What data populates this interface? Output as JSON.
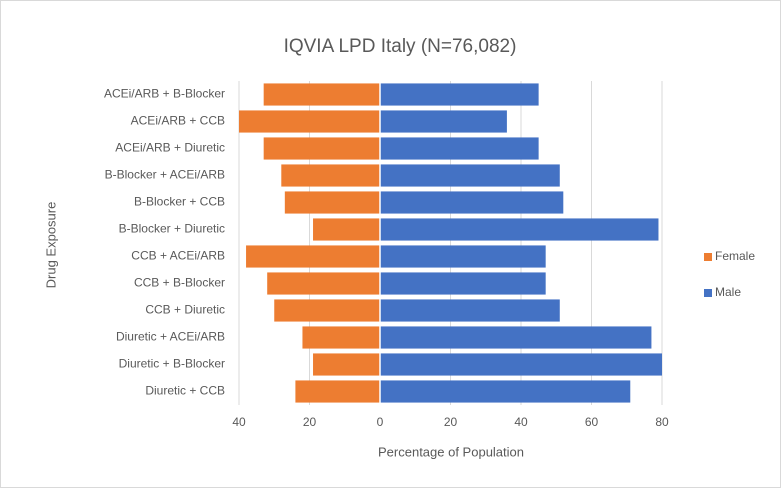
{
  "chart_data": {
    "type": "pyramid",
    "title": "IQVIA LPD Italy (N=76,082)",
    "x_label": "Percentage of Population",
    "y_label": "Drug Exposure",
    "categories": [
      "ACEi/ARB + B-Blocker",
      "ACEi/ARB + CCB",
      "ACEi/ARB + Diuretic",
      "B-Blocker + ACEi/ARB",
      "B-Blocker + CCB",
      "B-Blocker + Diuretic",
      "CCB + ACEi/ARB",
      "CCB + B-Blocker",
      "CCB + Diuretic",
      "Diuretic + ACEi/ARB",
      "Diuretic + B-Blocker",
      "Diuretic + CCB"
    ],
    "series": [
      {
        "name": "Female",
        "color": "#ed7d31",
        "values": [
          -33,
          -40,
          -33,
          -28,
          -27,
          -19,
          -38,
          -32,
          -30,
          -22,
          -19,
          -24
        ]
      },
      {
        "name": "Male",
        "color": "#4472c4",
        "values": [
          45,
          36,
          45,
          51,
          52,
          79,
          47,
          47,
          51,
          77,
          80,
          71
        ]
      }
    ],
    "xlim": [
      -40,
      80
    ],
    "xticks": [
      {
        "value": -40,
        "label": "40"
      },
      {
        "value": -20,
        "label": "20"
      },
      0,
      20,
      40,
      60,
      80
    ],
    "grid": true,
    "legend": "right"
  }
}
